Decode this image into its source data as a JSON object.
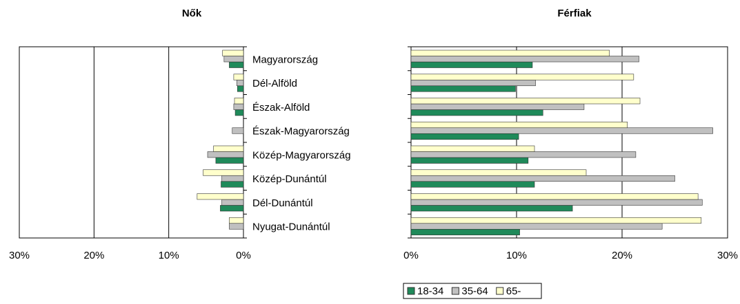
{
  "chart_data": {
    "type": "butterfly",
    "categories": [
      "Magyarország",
      "Dél-Alföld",
      "Észak-Alföld",
      "Észak-Magyarország",
      "Közép-Magyarország",
      "Közép-Dunántúl",
      "Dél-Dunántúl",
      "Nyugat-Dunántúl"
    ],
    "series": [
      {
        "name": "18-34",
        "color": "#1f8a5a"
      },
      {
        "name": "35-64",
        "color": "#c0c0c0"
      },
      {
        "name": "65-",
        "color": "#ffffcc"
      }
    ],
    "grid": true,
    "panels": [
      {
        "title": "Nők",
        "reversed": true,
        "xlim": [
          0,
          30
        ],
        "xticks": [
          {
            "value": 30,
            "label": "30%"
          },
          {
            "value": 20,
            "label": "20%"
          },
          {
            "value": 10,
            "label": "10%"
          },
          {
            "value": 0,
            "label": "0%"
          }
        ],
        "values": [
          [
            1.9,
            0.8,
            1.1,
            0,
            3.7,
            3.0,
            3.1,
            0
          ],
          [
            2.6,
            0.9,
            1.3,
            1.5,
            4.8,
            2.9,
            2.9,
            1.9
          ],
          [
            2.8,
            1.3,
            1.2,
            0,
            4.0,
            5.4,
            6.2,
            1.9
          ]
        ]
      },
      {
        "title": "Férfiak",
        "reversed": false,
        "xlim": [
          0,
          30
        ],
        "xticks": [
          {
            "value": 0,
            "label": "0%"
          },
          {
            "value": 10,
            "label": "10%"
          },
          {
            "value": 20,
            "label": "20%"
          },
          {
            "value": 30,
            "label": "30%"
          }
        ],
        "values": [
          [
            11.5,
            9.9,
            12.5,
            10.2,
            11.1,
            11.7,
            15.3,
            10.3
          ],
          [
            21.6,
            11.8,
            16.4,
            28.6,
            21.3,
            25.0,
            27.6,
            23.8
          ],
          [
            18.8,
            21.1,
            21.7,
            20.5,
            11.7,
            16.6,
            27.2,
            27.5
          ]
        ]
      }
    ]
  }
}
